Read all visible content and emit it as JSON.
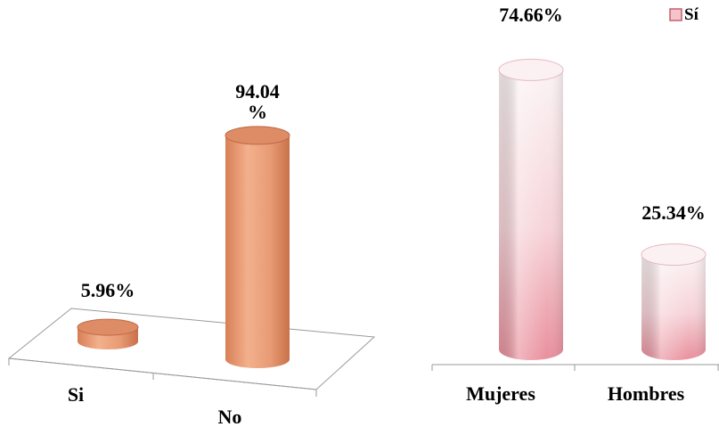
{
  "chart_data": [
    {
      "type": "bar",
      "style": "3d-cylinder",
      "categories": [
        "Si",
        "No"
      ],
      "values": [
        5.96,
        94.04
      ],
      "data_labels": [
        "5.96%",
        "94.04\n%"
      ],
      "ylim": [
        0,
        100
      ],
      "color": "#e9a07a"
    },
    {
      "type": "bar",
      "style": "3d-cylinder",
      "categories": [
        "Mujeres",
        "Hombres"
      ],
      "values": [
        74.66,
        25.34
      ],
      "data_labels": [
        "74.66%",
        "25.34%"
      ],
      "ylim": [
        0,
        100
      ],
      "color": "#f5c6cc",
      "legend": {
        "position": "top-right",
        "entries": [
          {
            "name": "Sí",
            "color": "#e99aa6"
          }
        ]
      }
    }
  ]
}
